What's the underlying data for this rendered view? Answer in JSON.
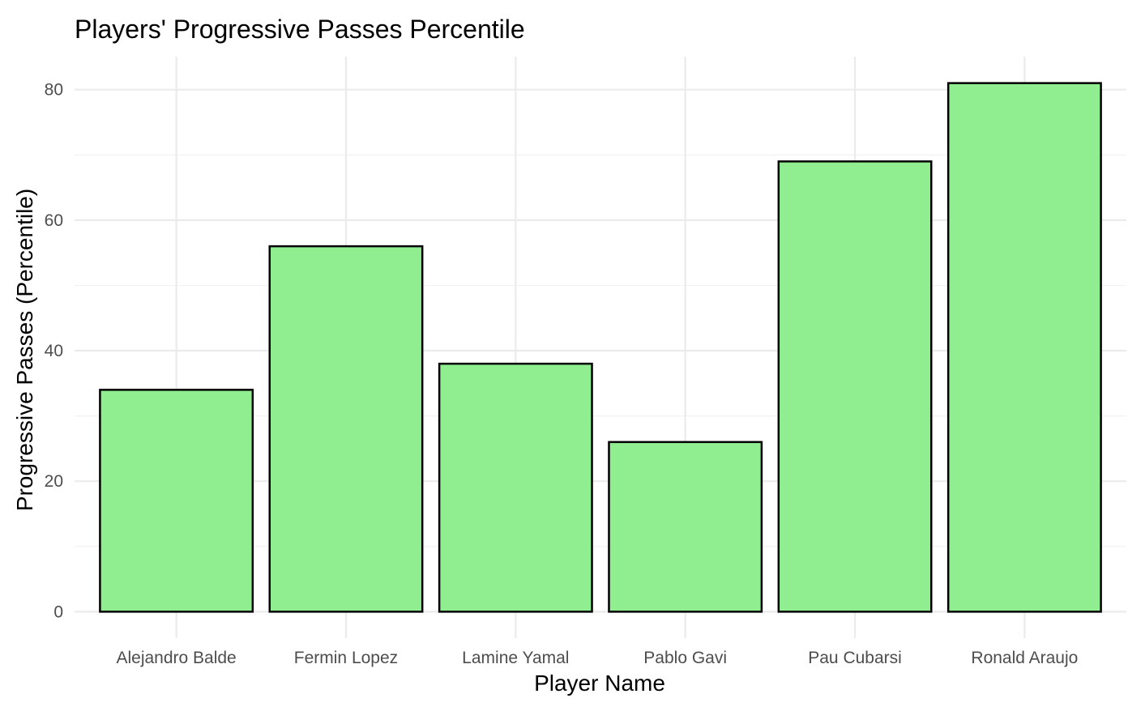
{
  "chart_data": {
    "type": "bar",
    "title": "Players' Progressive Passes Percentile",
    "xlabel": "Player Name",
    "ylabel": "Progressive Passes (Percentile)",
    "categories": [
      "Alejandro Balde",
      "Fermin Lopez",
      "Lamine Yamal",
      "Pablo Gavi",
      "Pau Cubarsi",
      "Ronald Araujo"
    ],
    "values": [
      34,
      56,
      38,
      26,
      69,
      81
    ],
    "ylim": [
      -4.05,
      85.05
    ],
    "yticks": [
      0,
      20,
      40,
      60,
      80
    ],
    "ytick_labels": [
      "0",
      "20",
      "40",
      "60",
      "80"
    ],
    "grid": true,
    "legend": "none",
    "colors": {
      "bar_fill": "#90EE90",
      "bar_stroke": "#000000",
      "grid_major": "#EBEBEB",
      "grid_minor": "#F2F2F2",
      "tick_text": "#4D4D4D"
    }
  }
}
